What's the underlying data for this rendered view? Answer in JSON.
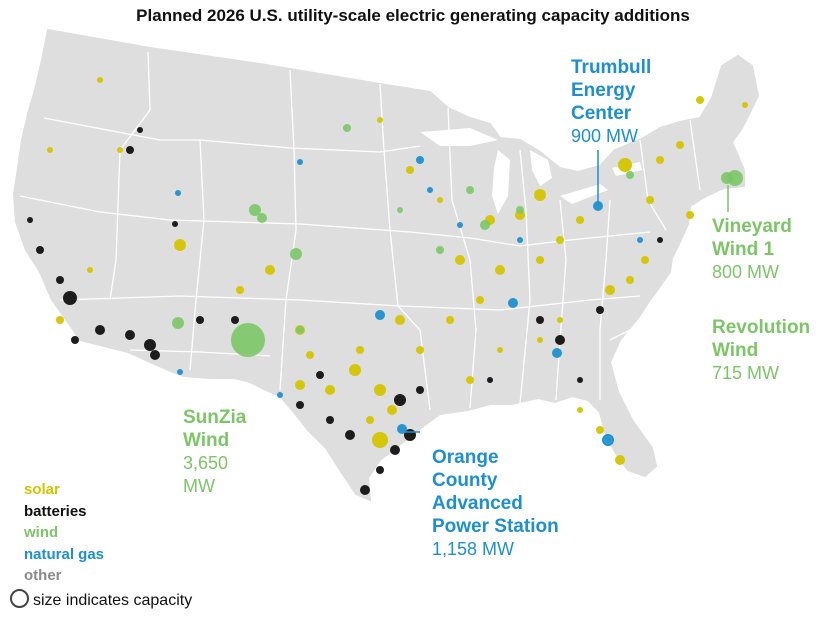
{
  "title": "Planned 2026 U.S. utility-scale electric generating capacity additions",
  "colors": {
    "solar": "#d4c400",
    "batteries": "#111111",
    "wind": "#7cc667",
    "natural_gas": "#1e8fd0",
    "other": "#8a8a8a",
    "land": "#dedede",
    "borders": "#ffffff"
  },
  "callouts": {
    "trumbull": {
      "name_lines": [
        "Trumbull",
        "Energy",
        "Center"
      ],
      "capacity": "900 MW"
    },
    "vineyard": {
      "name_lines": [
        "Vineyard",
        "Wind 1"
      ],
      "capacity": "800 MW"
    },
    "revolution": {
      "name_lines": [
        "Revolution",
        "Wind"
      ],
      "capacity": "715 MW"
    },
    "sunzia": {
      "name_lines": [
        "SunZia",
        "Wind"
      ],
      "capacity_lines": [
        "3,650",
        "MW"
      ]
    },
    "orange": {
      "name_lines": [
        "Orange",
        "County",
        "Advanced",
        "Power Station"
      ],
      "capacity": "1,158 MW"
    }
  },
  "legend": {
    "items": [
      "solar",
      "batteries",
      "wind",
      "natural gas",
      "other"
    ],
    "size_note": "size indicates capacity"
  }
}
